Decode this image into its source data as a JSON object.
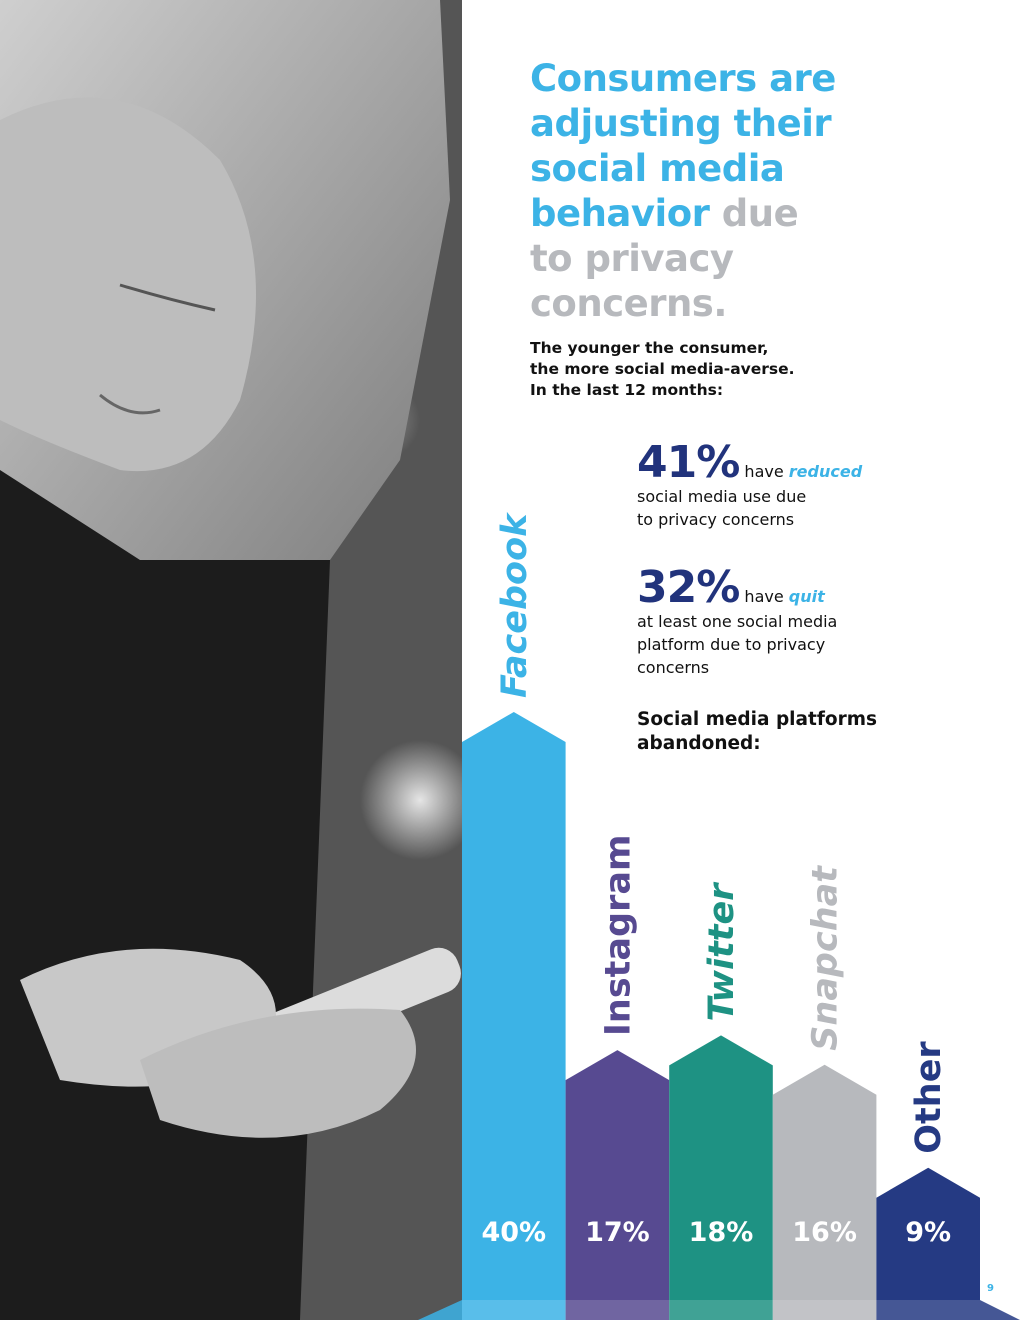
{
  "headline": {
    "blue_lines": [
      "Consumers are",
      "adjusting their",
      "social media"
    ],
    "mixed_blue": "behavior",
    "mixed_gray": "due",
    "gray_lines": [
      "to privacy",
      "concerns."
    ]
  },
  "intro": {
    "lines": [
      "The younger the consumer,",
      "the more social media-averse.",
      "In the last 12 months:"
    ]
  },
  "stats": [
    {
      "value": "41%",
      "have": "have",
      "emphasis": "reduced",
      "desc_lines": [
        "social media use due",
        "to privacy concerns"
      ]
    },
    {
      "value": "32%",
      "have": "have",
      "emphasis": "quit",
      "desc_lines": [
        "at least one social media",
        "platform due to privacy",
        "concerns"
      ]
    }
  ],
  "chart_subhead": {
    "lines": [
      "Social media platforms",
      "abandoned:"
    ]
  },
  "colors": {
    "facebook": "#3cb3e6",
    "instagram": "#574a91",
    "twitter": "#1e9283",
    "snapchat": "#b7b9bd",
    "other": "#253a83"
  },
  "chart_data": {
    "type": "bar",
    "title": "Social media platforms abandoned:",
    "categories": [
      "Facebook",
      "Instagram",
      "Twitter",
      "Snapchat",
      "Other"
    ],
    "values": [
      40,
      17,
      18,
      16,
      9
    ],
    "value_labels": [
      "40%",
      "17%",
      "18%",
      "16%",
      "9%"
    ],
    "ylim": [
      0,
      40
    ],
    "grid": false
  },
  "page_number": "9"
}
